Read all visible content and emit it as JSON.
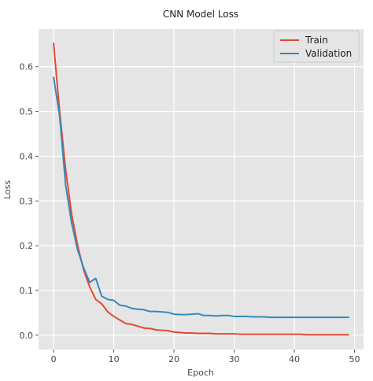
{
  "chart_data": {
    "type": "line",
    "title": "CNN Model Loss",
    "xlabel": "Epoch",
    "ylabel": "Loss",
    "xlim": [
      -2.5,
      51.5
    ],
    "ylim": [
      -0.032,
      0.684
    ],
    "xticks": [
      0,
      10,
      20,
      30,
      40,
      50
    ],
    "yticks": [
      0.0,
      0.1,
      0.2,
      0.3,
      0.4,
      0.5,
      0.6
    ],
    "grid": true,
    "legend_position": "top-right",
    "x": [
      0,
      1,
      2,
      3,
      4,
      5,
      6,
      7,
      8,
      9,
      10,
      11,
      12,
      13,
      14,
      15,
      16,
      17,
      18,
      19,
      20,
      21,
      22,
      23,
      24,
      25,
      26,
      27,
      28,
      29,
      30,
      31,
      32,
      33,
      34,
      35,
      36,
      37,
      38,
      39,
      40,
      41,
      42,
      43,
      44,
      45,
      46,
      47,
      48,
      49
    ],
    "series": [
      {
        "name": "Train",
        "color": "#e24a33",
        "values": [
          0.652,
          0.5,
          0.37,
          0.27,
          0.2,
          0.145,
          0.108,
          0.08,
          0.07,
          0.052,
          0.042,
          0.034,
          0.026,
          0.024,
          0.02,
          0.016,
          0.015,
          0.012,
          0.011,
          0.01,
          0.007,
          0.006,
          0.005,
          0.005,
          0.004,
          0.004,
          0.004,
          0.003,
          0.003,
          0.003,
          0.003,
          0.002,
          0.002,
          0.002,
          0.002,
          0.002,
          0.002,
          0.002,
          0.002,
          0.002,
          0.002,
          0.002,
          0.001,
          0.001,
          0.001,
          0.001,
          0.001,
          0.001,
          0.001,
          0.001
        ]
      },
      {
        "name": "Validation",
        "color": "#348abd",
        "values": [
          0.576,
          0.49,
          0.335,
          0.25,
          0.19,
          0.15,
          0.118,
          0.127,
          0.087,
          0.08,
          0.078,
          0.067,
          0.065,
          0.06,
          0.058,
          0.057,
          0.053,
          0.053,
          0.052,
          0.051,
          0.047,
          0.046,
          0.046,
          0.047,
          0.048,
          0.044,
          0.044,
          0.043,
          0.044,
          0.044,
          0.042,
          0.042,
          0.042,
          0.041,
          0.041,
          0.041,
          0.04,
          0.04,
          0.04,
          0.04,
          0.04,
          0.04,
          0.04,
          0.04,
          0.04,
          0.04,
          0.04,
          0.04,
          0.04,
          0.04
        ]
      }
    ]
  }
}
